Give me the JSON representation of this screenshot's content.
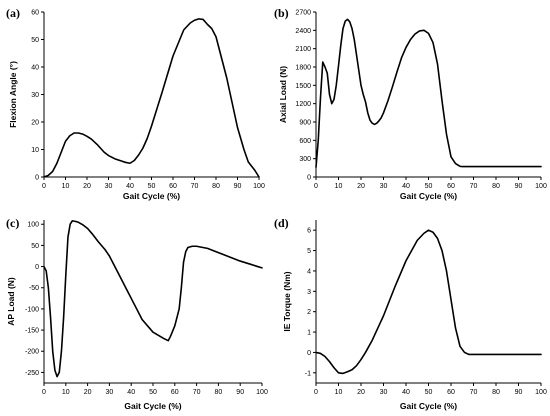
{
  "chart_data": [
    {
      "type": "line",
      "panel_label": "(a)",
      "title": "",
      "xlabel": "Gait Cycle (%)",
      "ylabel": "Flexion Angle (°)",
      "xlim": [
        0,
        100
      ],
      "ylim": [
        0,
        60
      ],
      "xticks": [
        0,
        10,
        20,
        30,
        40,
        50,
        60,
        70,
        80,
        90,
        100
      ],
      "yticks": [
        0,
        10,
        20,
        30,
        40,
        50,
        60
      ],
      "grid": false,
      "series": [
        {
          "x": [
            0,
            2,
            4,
            6,
            8,
            10,
            12,
            14,
            16,
            18,
            20,
            22,
            25,
            28,
            30,
            33,
            36,
            38,
            40,
            42,
            44,
            46,
            48,
            50,
            55,
            60,
            65,
            68,
            70,
            72,
            74,
            76,
            78,
            80,
            85,
            90,
            93,
            95,
            98,
            100
          ],
          "y": [
            0,
            0.6,
            2,
            5,
            9,
            13,
            15,
            16,
            16,
            15.6,
            14.8,
            13.8,
            11.6,
            9,
            7.8,
            6.6,
            5.8,
            5.3,
            5,
            6,
            8,
            10.5,
            14,
            18.5,
            31,
            44,
            53.5,
            56,
            57,
            57.5,
            57.3,
            55.5,
            54,
            51,
            36,
            18,
            10,
            5.5,
            2.5,
            0
          ]
        }
      ],
      "color": "#000000"
    },
    {
      "type": "line",
      "panel_label": "(b)",
      "title": "",
      "xlabel": "Gait Cycle (%)",
      "ylabel": "Axial Load (N)",
      "xlim": [
        0,
        100
      ],
      "ylim": [
        0,
        2700
      ],
      "xticks": [
        0,
        10,
        20,
        30,
        40,
        50,
        60,
        70,
        80,
        90,
        100
      ],
      "yticks": [
        0,
        300,
        600,
        900,
        1200,
        1500,
        1800,
        2100,
        2400,
        2700
      ],
      "grid": false,
      "series": [
        {
          "x": [
            0,
            1,
            2,
            3,
            4,
            5,
            6,
            7,
            8,
            9,
            10,
            11,
            12,
            13,
            14,
            15,
            16,
            17,
            18,
            19,
            20,
            21,
            22,
            23,
            24,
            25,
            26,
            27,
            28,
            29,
            30,
            32,
            34,
            36,
            38,
            40,
            42,
            44,
            46,
            48,
            50,
            52,
            54,
            56,
            58,
            60,
            62,
            64,
            65,
            70,
            80,
            90,
            100
          ],
          "y": [
            160,
            600,
            1300,
            1880,
            1800,
            1700,
            1350,
            1200,
            1270,
            1500,
            1820,
            2150,
            2430,
            2550,
            2580,
            2540,
            2430,
            2250,
            2000,
            1750,
            1500,
            1350,
            1230,
            1050,
            930,
            880,
            860,
            880,
            920,
            970,
            1050,
            1250,
            1480,
            1720,
            1950,
            2120,
            2250,
            2340,
            2390,
            2400,
            2350,
            2200,
            1850,
            1250,
            700,
            330,
            220,
            175,
            170,
            170,
            170,
            170,
            170
          ]
        }
      ],
      "color": "#000000"
    },
    {
      "type": "line",
      "panel_label": "(c)",
      "title": "",
      "xlabel": "Gait Cycle (%)",
      "ylabel": "AP Load (N)",
      "xlim": [
        0,
        100
      ],
      "ylim": [
        -275,
        110
      ],
      "xticks": [
        0,
        10,
        20,
        30,
        40,
        50,
        60,
        70,
        80,
        90,
        100
      ],
      "yticks": [
        -250,
        -200,
        -150,
        -100,
        -50,
        0,
        50,
        100
      ],
      "grid": false,
      "series": [
        {
          "x": [
            0,
            1,
            2,
            3,
            4,
            5,
            6,
            7,
            8,
            9,
            10,
            11,
            12,
            13,
            14,
            15,
            16,
            18,
            20,
            22,
            25,
            28,
            30,
            35,
            40,
            45,
            50,
            55,
            57,
            58,
            60,
            62,
            63,
            64,
            65,
            66,
            68,
            70,
            72,
            75,
            80,
            85,
            90,
            95,
            98,
            100
          ],
          "y": [
            0,
            -10,
            -50,
            -120,
            -200,
            -245,
            -260,
            -250,
            -200,
            -120,
            -20,
            70,
            100,
            108,
            107,
            106,
            104,
            98,
            90,
            78,
            58,
            40,
            25,
            -25,
            -75,
            -125,
            -155,
            -170,
            -175,
            -165,
            -140,
            -100,
            -50,
            10,
            35,
            45,
            48,
            48,
            46,
            43,
            33,
            23,
            13,
            5,
            0,
            -3
          ]
        }
      ],
      "color": "#000000"
    },
    {
      "type": "line",
      "panel_label": "(d)",
      "title": "",
      "xlabel": "Gait Cycle (%)",
      "ylabel": "IE Torque (Nm)",
      "xlim": [
        0,
        100
      ],
      "ylim": [
        -1.5,
        6.5
      ],
      "xticks": [
        0,
        10,
        20,
        30,
        40,
        50,
        60,
        70,
        80,
        90,
        100
      ],
      "yticks": [
        -1,
        0,
        1,
        2,
        3,
        4,
        5,
        6
      ],
      "grid": false,
      "series": [
        {
          "x": [
            0,
            2,
            4,
            6,
            8,
            10,
            12,
            14,
            16,
            18,
            20,
            22,
            25,
            30,
            35,
            40,
            45,
            48,
            50,
            52,
            54,
            56,
            58,
            60,
            62,
            64,
            66,
            68,
            70,
            80,
            90,
            100
          ],
          "y": [
            0,
            -0.05,
            -0.2,
            -0.45,
            -0.75,
            -1,
            -1.03,
            -0.95,
            -0.85,
            -0.65,
            -0.35,
            0,
            0.6,
            1.8,
            3.2,
            4.5,
            5.5,
            5.85,
            6,
            5.9,
            5.6,
            5,
            4,
            2.6,
            1.2,
            0.3,
            0,
            -0.1,
            -0.1,
            -0.1,
            -0.1,
            -0.1
          ]
        }
      ],
      "color": "#000000"
    }
  ]
}
